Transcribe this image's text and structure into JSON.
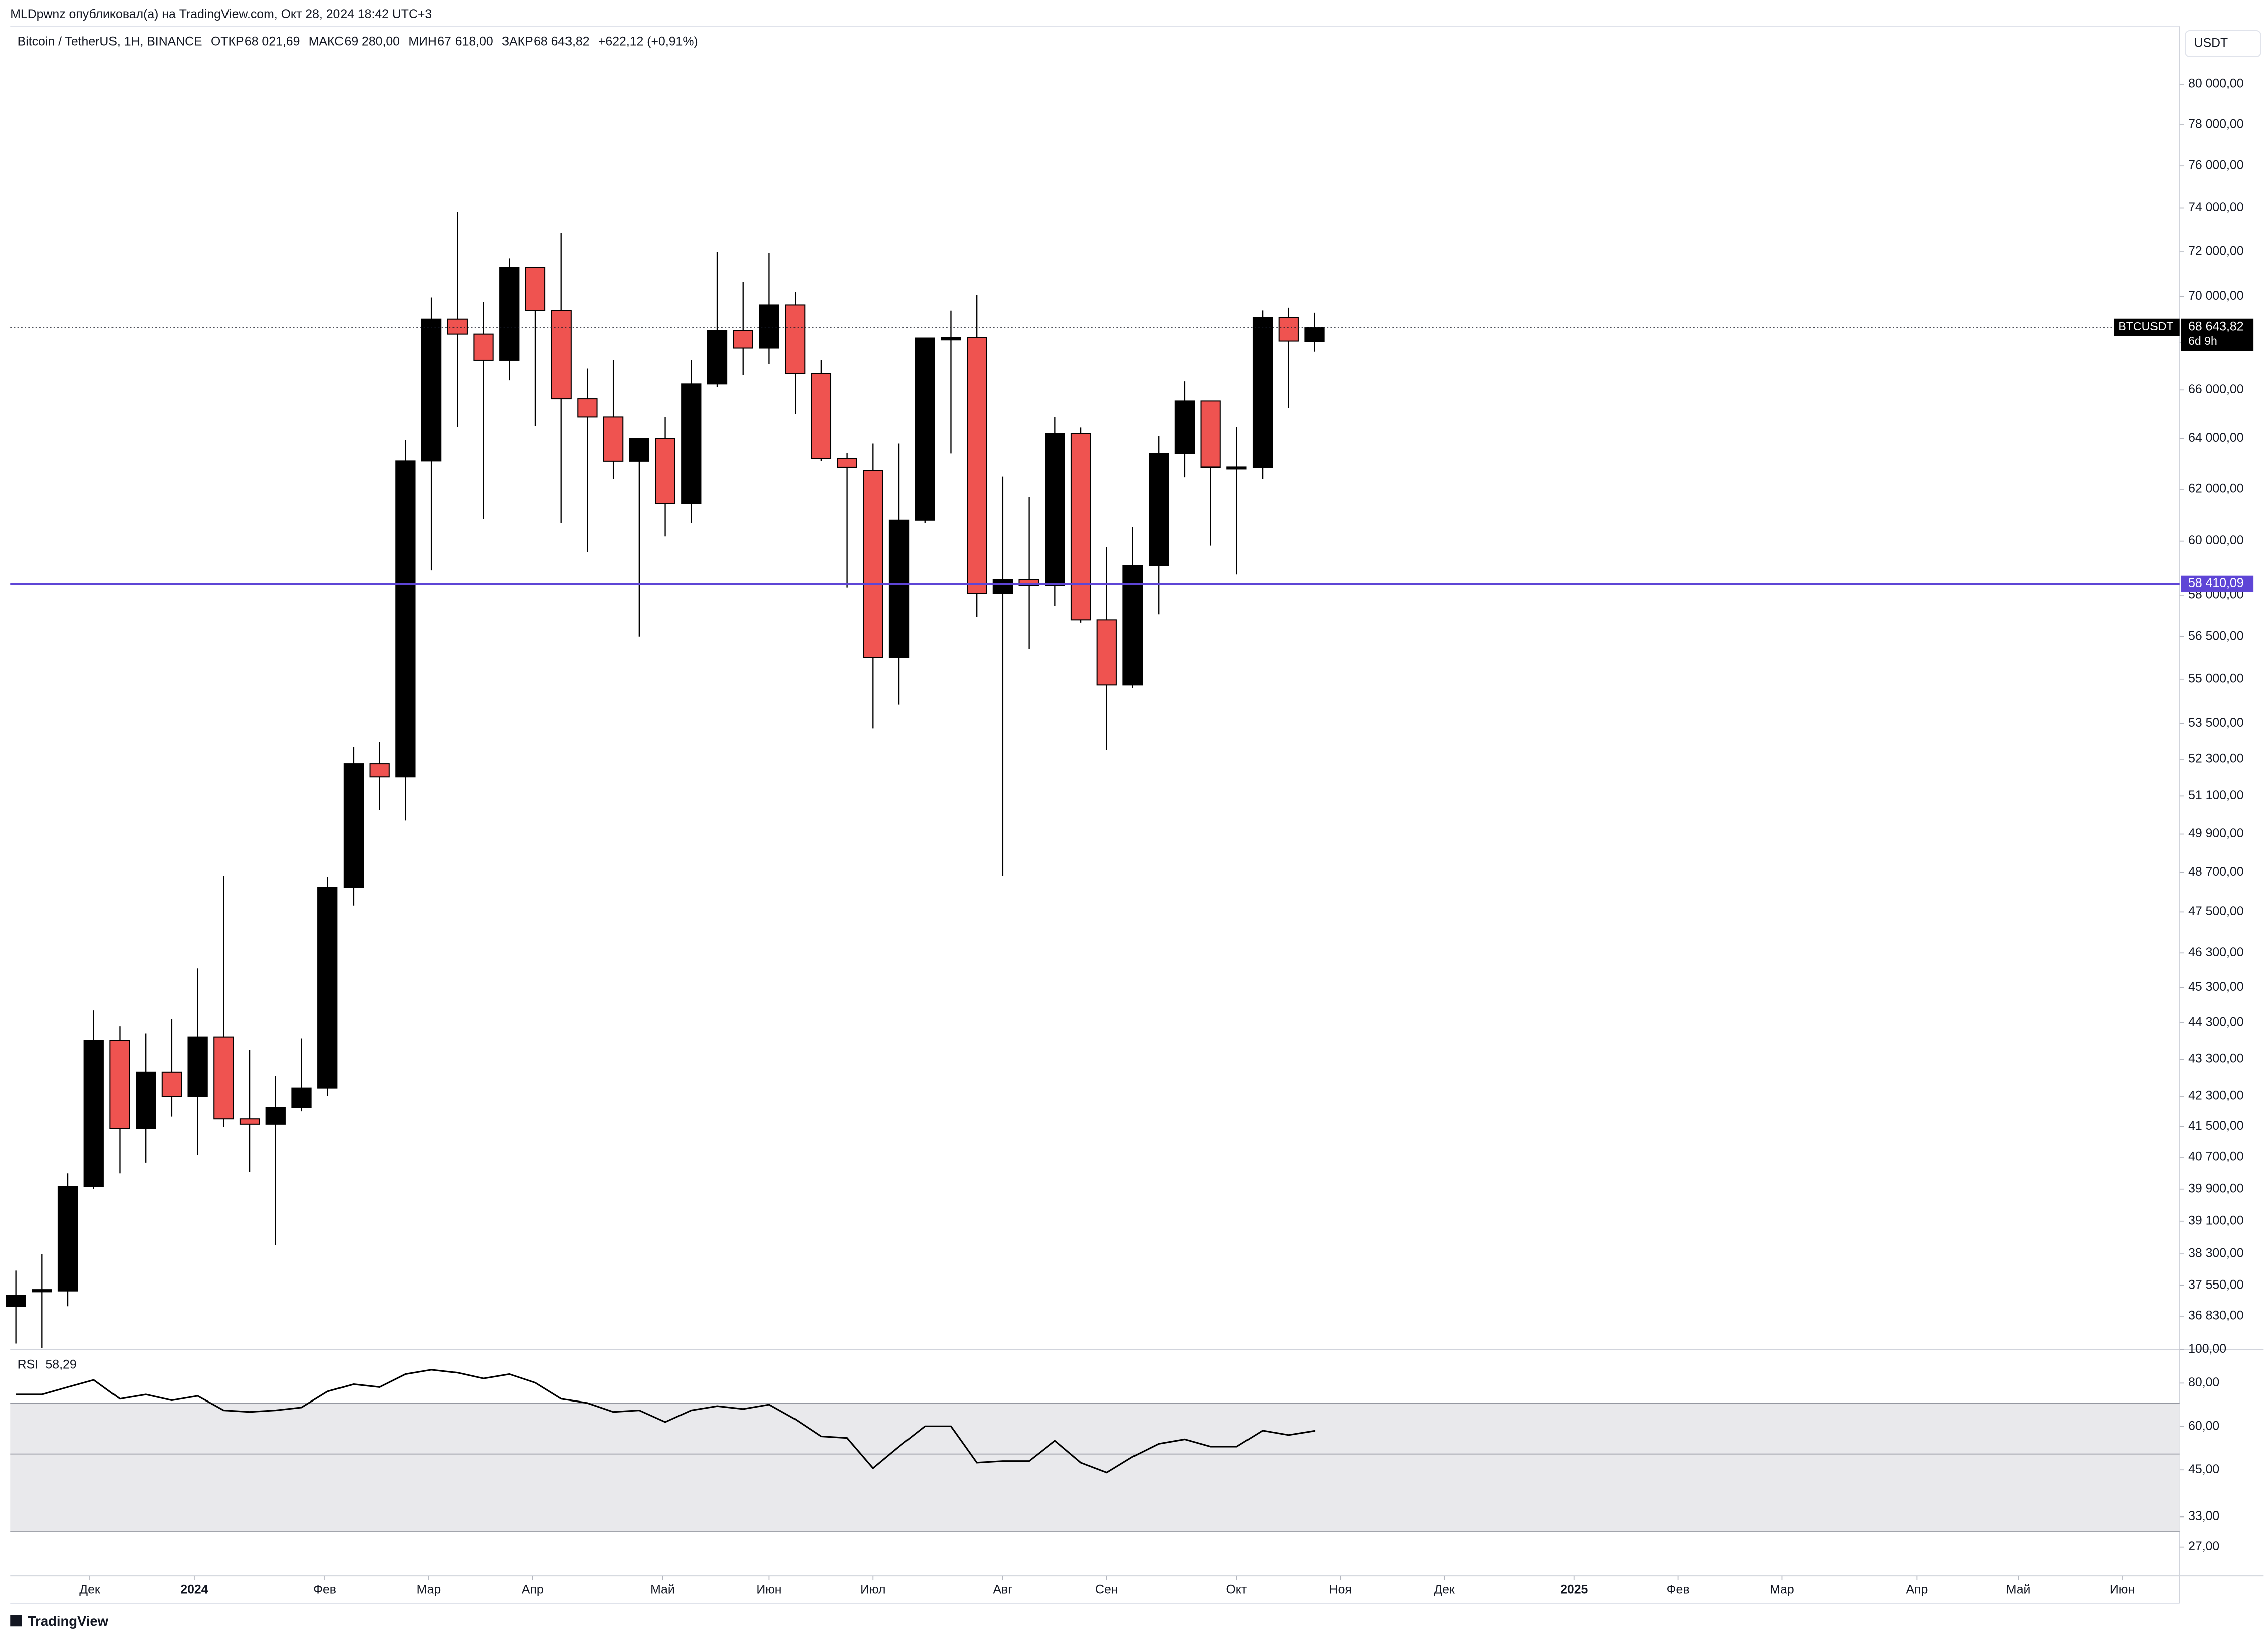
{
  "header": {
    "author_line": "MLDpwnz опубликовал(а) на TradingView.com, Окт 28, 2024 18:42 UTC+3"
  },
  "footer": {
    "brand": "TradingView"
  },
  "chart_data": [
    {
      "type": "candlestick",
      "title": "Bitcoin / TetherUS, 1H, BINANCE",
      "ohlc_legend": [
        {
          "label": "ОТКР",
          "value": "68 021,69"
        },
        {
          "label": "МАКС",
          "value": "69 280,00"
        },
        {
          "label": "МИН",
          "value": "67 618,00"
        },
        {
          "label": "ЗАКР",
          "value": "68 643,82"
        }
      ],
      "change": "+622,12 (+0,91%)",
      "currency": "USDT",
      "open": [
        37060,
        37400,
        37420,
        39970,
        43800,
        41440,
        42950,
        42300,
        43900,
        41700,
        41560,
        42000,
        42520,
        48240,
        52150,
        51720,
        63100,
        69000,
        68350,
        67250,
        71300,
        69370,
        65630,
        64880,
        63090,
        64000,
        61450,
        66250,
        68500,
        67750,
        69620,
        66680,
        63200,
        62730,
        55760,
        60800,
        68100,
        68200,
        58060,
        58560,
        58350,
        64200,
        57100,
        54800,
        59080,
        63400,
        65540,
        62800,
        62860,
        69070,
        68021.69
      ],
      "high": [
        37900,
        38300,
        40300,
        44650,
        44200,
        44000,
        44400,
        45850,
        48600,
        43550,
        42850,
        43860,
        48560,
        52700,
        52870,
        63950,
        69950,
        73800,
        69750,
        71700,
        71300,
        72850,
        66900,
        67250,
        64000,
        64870,
        67250,
        72000,
        70640,
        71940,
        70200,
        67250,
        63420,
        63800,
        63800,
        68180,
        69370,
        70050,
        62500,
        61700,
        64880,
        64450,
        59780,
        60540,
        64100,
        66360,
        65540,
        64480,
        69380,
        69500,
        69280
      ],
      "low": [
        36200,
        36100,
        37060,
        39900,
        40300,
        40560,
        41760,
        40760,
        41480,
        40330,
        38520,
        41900,
        42300,
        47690,
        50640,
        50330,
        58900,
        64480,
        60840,
        66400,
        64500,
        60700,
        59580,
        62400,
        56500,
        60180,
        60700,
        66130,
        66620,
        67100,
        65000,
        63100,
        58280,
        53330,
        54140,
        60700,
        63400,
        57200,
        48600,
        56050,
        57600,
        57000,
        52600,
        54700,
        57300,
        62470,
        59830,
        58750,
        62400,
        65250,
        67618
      ],
      "close": [
        37320,
        37450,
        39970,
        43800,
        41440,
        42950,
        42300,
        43900,
        41700,
        41560,
        42000,
        42520,
        48240,
        52150,
        51720,
        63100,
        69000,
        68350,
        67250,
        71300,
        69370,
        65630,
        64880,
        63090,
        64000,
        61450,
        66250,
        68500,
        67750,
        69620,
        66680,
        63200,
        62850,
        55760,
        60800,
        68180,
        68200,
        58060,
        58560,
        58350,
        64200,
        57100,
        54800,
        59080,
        63400,
        65540,
        62860,
        62860,
        69070,
        68050,
        68643.82
      ],
      "up_color": "#000000",
      "down_color": "#ef5350",
      "log_scale": true,
      "grid": false,
      "xlim": [
        -0.22,
        83.3
      ],
      "xticks": [
        {
          "value": 2.85,
          "label": "Дек"
        },
        {
          "value": 6.87,
          "label": "2024"
        },
        {
          "value": 11.9,
          "label": "Фев"
        },
        {
          "value": 15.9,
          "label": "Мар"
        },
        {
          "value": 19.9,
          "label": "Апр"
        },
        {
          "value": 24.9,
          "label": "Май"
        },
        {
          "value": 29.0,
          "label": "Июн"
        },
        {
          "value": 33.0,
          "label": "Июл"
        },
        {
          "value": 38.0,
          "label": "Авг"
        },
        {
          "value": 42.0,
          "label": "Сен"
        },
        {
          "value": 47.0,
          "label": "Окт"
        },
        {
          "value": 51.0,
          "label": "Ноя"
        },
        {
          "value": 55.0,
          "label": "Дек"
        },
        {
          "value": 60.0,
          "label": "2025"
        },
        {
          "value": 64.0,
          "label": "Фев"
        },
        {
          "value": 68.0,
          "label": "Мар"
        },
        {
          "value": 73.2,
          "label": "Апр"
        },
        {
          "value": 77.1,
          "label": "Май"
        },
        {
          "value": 81.1,
          "label": "Июн"
        }
      ],
      "ylim": [
        36064,
        82980
      ],
      "yticks": [
        {
          "value": 80000,
          "label": "80 000,00"
        },
        {
          "value": 78000,
          "label": "78 000,00"
        },
        {
          "value": 76000,
          "label": "76 000,00"
        },
        {
          "value": 74000,
          "label": "74 000,00"
        },
        {
          "value": 72000,
          "label": "72 000,00"
        },
        {
          "value": 70000,
          "label": "70 000,00"
        },
        {
          "value": 68000,
          "label": "68 000,00"
        },
        {
          "value": 66000,
          "label": "66 000,00"
        },
        {
          "value": 64000,
          "label": "64 000,00"
        },
        {
          "value": 62000,
          "label": "62 000,00"
        },
        {
          "value": 60000,
          "label": "60 000,00"
        },
        {
          "value": 58000,
          "label": "58 000,00"
        },
        {
          "value": 56500,
          "label": "56 500,00"
        },
        {
          "value": 55000,
          "label": "55 000,00"
        },
        {
          "value": 53500,
          "label": "53 500,00"
        },
        {
          "value": 52300,
          "label": "52 300,00"
        },
        {
          "value": 51100,
          "label": "51 100,00"
        },
        {
          "value": 49900,
          "label": "49 900,00"
        },
        {
          "value": 48700,
          "label": "48 700,00"
        },
        {
          "value": 47500,
          "label": "47 500,00"
        },
        {
          "value": 46300,
          "label": "46 300,00"
        },
        {
          "value": 45300,
          "label": "45 300,00"
        },
        {
          "value": 44300,
          "label": "44 300,00"
        },
        {
          "value": 43300,
          "label": "43 300,00"
        },
        {
          "value": 42300,
          "label": "42 300,00"
        },
        {
          "value": 41500,
          "label": "41 500,00"
        },
        {
          "value": 40700,
          "label": "40 700,00"
        },
        {
          "value": 39900,
          "label": "39 900,00"
        },
        {
          "value": 39100,
          "label": "39 100,00"
        },
        {
          "value": 38300,
          "label": "38 300,00"
        },
        {
          "value": 37550,
          "label": "37 550,00"
        },
        {
          "value": 36830,
          "label": "36 830,00"
        }
      ],
      "hline": {
        "value": 58410.09,
        "label": "58 410,09",
        "color": "#5e45d6"
      },
      "last_price": {
        "symbol": "BTCUSDT",
        "label": "68 643,82",
        "countdown": "6d 9h"
      }
    },
    {
      "type": "line",
      "title": "RSI",
      "current": {
        "value": 58.29,
        "label": "58,29"
      },
      "values": [
        74.2,
        74.2,
        77.9,
        81.7,
        72.1,
        74.2,
        71.4,
        73.5,
        66.8,
        66.1,
        66.8,
        68.1,
        75.7,
        79.4,
        77.9,
        84.9,
        87.4,
        85.7,
        82.5,
        84.9,
        80.2,
        72.1,
        70.1,
        66.1,
        66.8,
        61.8,
        66.8,
        68.7,
        67.4,
        69.4,
        63.0,
        56.2,
        55.6,
        45.5,
        52.5,
        60.1,
        60.1,
        47.2,
        47.7,
        47.7,
        54.6,
        47.2,
        44.2,
        49.1,
        53.5,
        55.1,
        52.5,
        52.5,
        58.4,
        56.7,
        58.29
      ],
      "color": "#000000",
      "log_scale": true,
      "ylim": [
        22.3,
        100
      ],
      "yticks": [
        {
          "value": 100,
          "label": "100,00"
        },
        {
          "value": 80,
          "label": "80,00"
        },
        {
          "value": 60,
          "label": "60,00"
        },
        {
          "value": 45,
          "label": "45,00"
        },
        {
          "value": 33,
          "label": "33,00"
        },
        {
          "value": 27,
          "label": "27,00"
        }
      ],
      "band": [
        30,
        70
      ],
      "band_color": "#e9e9ec",
      "midline": 50
    }
  ]
}
